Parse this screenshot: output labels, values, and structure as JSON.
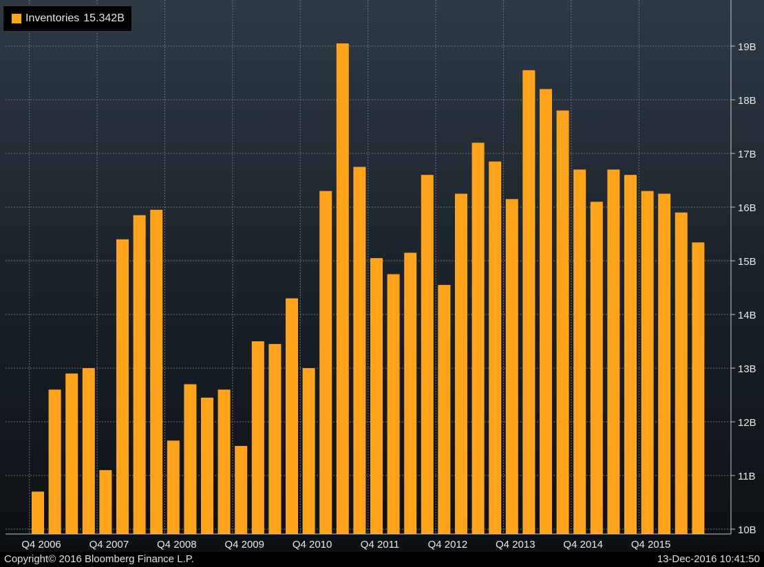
{
  "legend": {
    "label": "Inventories",
    "value": "15.342B",
    "color": "#ffa31a"
  },
  "footer": {
    "copyright": "Copyright© 2016 Bloomberg Finance L.P.",
    "timestamp": "13-Dec-2016 10:41:50"
  },
  "chart_data": {
    "type": "bar",
    "unit": "B",
    "ylim": [
      9.9,
      19.7
    ],
    "yticks": [
      10,
      11,
      12,
      13,
      14,
      15,
      16,
      17,
      18,
      19
    ],
    "ytick_labels": [
      "10B",
      "11B",
      "12B",
      "13B",
      "14B",
      "15B",
      "16B",
      "17B",
      "18B",
      "19B"
    ],
    "categories": [
      "Q4 2006",
      "Q1 2007",
      "Q2 2007",
      "Q3 2007",
      "Q4 2007",
      "Q1 2008",
      "Q2 2008",
      "Q3 2008",
      "Q4 2008",
      "Q1 2009",
      "Q2 2009",
      "Q3 2009",
      "Q4 2009",
      "Q1 2010",
      "Q2 2010",
      "Q3 2010",
      "Q4 2010",
      "Q1 2011",
      "Q2 2011",
      "Q3 2011",
      "Q4 2011",
      "Q1 2012",
      "Q2 2012",
      "Q3 2012",
      "Q4 2012",
      "Q1 2013",
      "Q2 2013",
      "Q3 2013",
      "Q4 2013",
      "Q1 2014",
      "Q2 2014",
      "Q3 2014",
      "Q4 2014",
      "Q1 2015",
      "Q2 2015",
      "Q3 2015",
      "Q4 2015",
      "Q1 2016",
      "Q2 2016",
      "Q3 2016"
    ],
    "values": [
      10.7,
      12.6,
      12.9,
      13.0,
      11.1,
      15.4,
      15.85,
      15.95,
      11.65,
      12.7,
      12.45,
      12.6,
      11.55,
      13.5,
      13.45,
      14.3,
      13.0,
      16.3,
      19.05,
      16.75,
      15.05,
      14.75,
      15.15,
      16.6,
      14.55,
      16.25,
      17.2,
      16.85,
      16.15,
      18.55,
      18.2,
      17.8,
      16.7,
      16.1,
      16.7,
      16.6,
      16.3,
      16.25,
      15.9,
      15.342
    ],
    "xtick_labels": [
      "Q4 2006",
      "Q4 2007",
      "Q4 2008",
      "Q4 2009",
      "Q4 2010",
      "Q4 2011",
      "Q4 2012",
      "Q4 2013",
      "Q4 2014",
      "Q4 2015"
    ],
    "bar_color": "#ffa31a",
    "grid": true,
    "legend_position": "top-left",
    "y_axis_side": "right"
  }
}
